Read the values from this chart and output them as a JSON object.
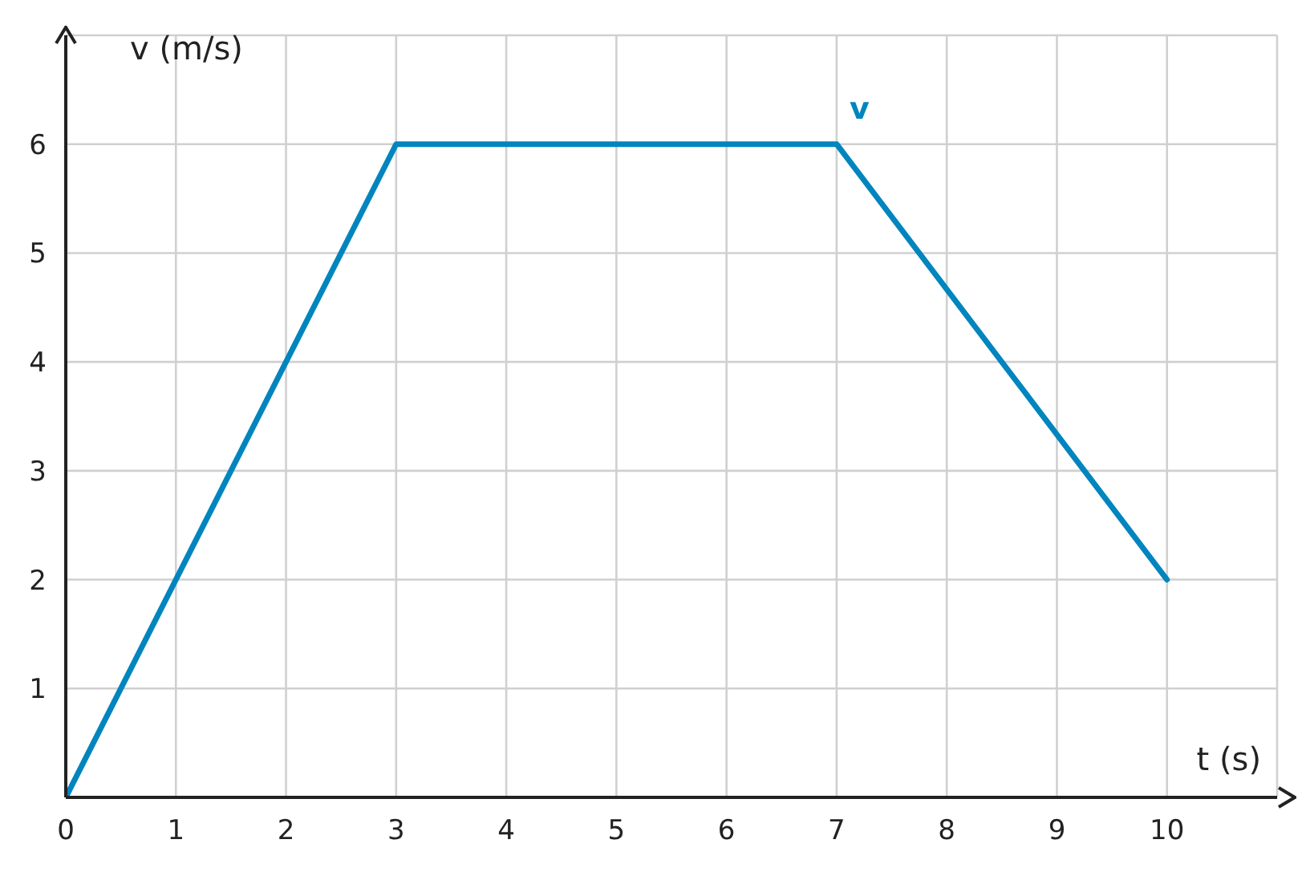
{
  "chart_data": {
    "type": "line",
    "xlabel": "t (s)",
    "ylabel": "v (m/s)",
    "x": [
      0,
      3,
      7,
      10
    ],
    "series": [
      {
        "name": "v",
        "color": "#0085be",
        "values": [
          0,
          6,
          6,
          2
        ]
      }
    ],
    "xlim": [
      0,
      11
    ],
    "ylim": [
      0,
      7
    ],
    "xticks": [
      0,
      1,
      2,
      3,
      4,
      5,
      6,
      7,
      8,
      9,
      10
    ],
    "yticks": [
      1,
      2,
      3,
      4,
      5,
      6
    ],
    "grid": true,
    "marker": "none",
    "line_style": "solid",
    "legend": false
  }
}
